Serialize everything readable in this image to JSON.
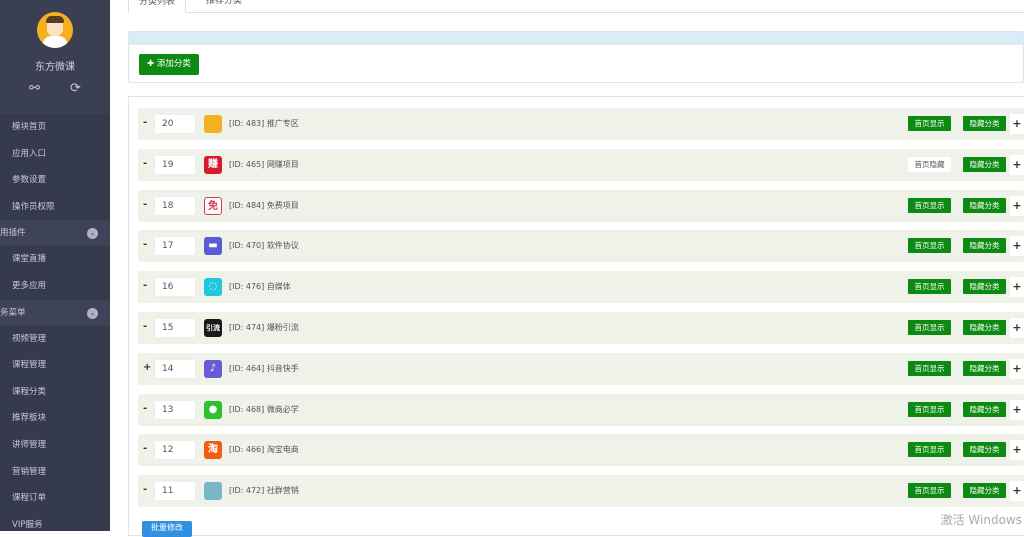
{
  "sidebar": {
    "username": "东方微课",
    "icons": [
      "link-icon",
      "refresh-icon"
    ],
    "top_items": [
      "模块首页",
      "应用入口",
      "参数设置",
      "操作员权限"
    ],
    "section1": {
      "label": "用插件",
      "items": [
        "课堂直播",
        "更多应用"
      ]
    },
    "section2": {
      "label": "务菜单",
      "items": [
        "视频管理",
        "课程管理",
        "课程分类",
        "推荐板块",
        "讲师管理",
        "营销管理",
        "课程订单",
        "VIP服务"
      ]
    }
  },
  "tabs": [
    "分类列表",
    "推荐分类"
  ],
  "add_button": "添加分类",
  "rows": [
    {
      "sign": "-",
      "order": "20",
      "label": "[ID: 483] 推广专区",
      "thumb": "",
      "thumb_color": "#f5b021",
      "show": "首页显示",
      "show_on": true,
      "hide": "隐藏分类"
    },
    {
      "sign": "-",
      "order": "19",
      "label": "[ID: 465] 网赚项目",
      "thumb": "赚",
      "thumb_color": "#d9192f",
      "show": "首页隐藏",
      "show_on": false,
      "hide": "隐藏分类"
    },
    {
      "sign": "-",
      "order": "18",
      "label": "[ID: 484] 免费项目",
      "thumb": "免",
      "thumb_color": "#ffffff",
      "show": "首页显示",
      "show_on": true,
      "hide": "隐藏分类"
    },
    {
      "sign": "-",
      "order": "17",
      "label": "[ID: 470] 软件协议",
      "thumb": "▬",
      "thumb_color": "#5b5bd6",
      "show": "首页显示",
      "show_on": true,
      "hide": "隐藏分类"
    },
    {
      "sign": "-",
      "order": "16",
      "label": "[ID: 476] 自媒体",
      "thumb": "◌",
      "thumb_color": "#1fc8dc",
      "show": "首页显示",
      "show_on": true,
      "hide": "隐藏分类"
    },
    {
      "sign": "-",
      "order": "15",
      "label": "[ID: 474] 爆粉引流",
      "thumb": "引流",
      "thumb_color": "#1a1a1a",
      "show": "首页显示",
      "show_on": true,
      "hide": "隐藏分类"
    },
    {
      "sign": "+",
      "order": "14",
      "label": "[ID: 464] 抖音快手",
      "thumb": "♪",
      "thumb_color": "#6a5ad6",
      "show": "首页显示",
      "show_on": true,
      "hide": "隐藏分类"
    },
    {
      "sign": "-",
      "order": "13",
      "label": "[ID: 468] 微商必学",
      "thumb": "●",
      "thumb_color": "#2dc32d",
      "show": "首页显示",
      "show_on": true,
      "hide": "隐藏分类"
    },
    {
      "sign": "-",
      "order": "12",
      "label": "[ID: 466] 淘宝电商",
      "thumb": "淘",
      "thumb_color": "#f35a12",
      "show": "首页显示",
      "show_on": true,
      "hide": "隐藏分类"
    },
    {
      "sign": "-",
      "order": "11",
      "label": "[ID: 472] 社群营销",
      "thumb": "",
      "thumb_color": "#7ab5c9",
      "show": "首页显示",
      "show_on": true,
      "hide": "隐藏分类"
    }
  ],
  "batch_button": "批量修改",
  "watermark": "激活 Windows"
}
